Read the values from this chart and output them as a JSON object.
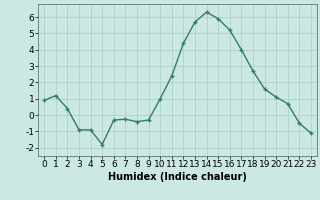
{
  "x": [
    0,
    1,
    2,
    3,
    4,
    5,
    6,
    7,
    8,
    9,
    10,
    11,
    12,
    13,
    14,
    15,
    16,
    17,
    18,
    19,
    20,
    21,
    22,
    23
  ],
  "y": [
    0.9,
    1.2,
    0.4,
    -0.9,
    -0.9,
    -1.8,
    -0.3,
    -0.25,
    -0.4,
    -0.3,
    1.0,
    2.4,
    4.4,
    5.7,
    6.3,
    5.9,
    5.2,
    4.0,
    2.7,
    1.6,
    1.1,
    0.7,
    -0.5,
    -1.1
  ],
  "line_color": "#2e7d6e",
  "marker": "+",
  "marker_size": 3,
  "linewidth": 1.0,
  "bg_color": "#cce8e4",
  "grid_color": "#aaccc8",
  "xlabel": "Humidex (Indice chaleur)",
  "xlabel_fontsize": 7,
  "tick_fontsize": 6.5,
  "ylim": [
    -2.5,
    6.8
  ],
  "xlim": [
    -0.5,
    23.5
  ],
  "yticks": [
    -2,
    -1,
    0,
    1,
    2,
    3,
    4,
    5,
    6
  ],
  "xticks": [
    0,
    1,
    2,
    3,
    4,
    5,
    6,
    7,
    8,
    9,
    10,
    11,
    12,
    13,
    14,
    15,
    16,
    17,
    18,
    19,
    20,
    21,
    22,
    23
  ]
}
